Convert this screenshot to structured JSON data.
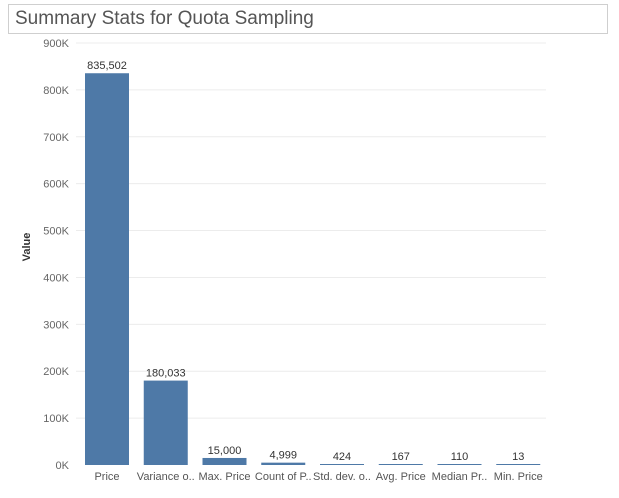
{
  "chart_data": {
    "type": "bar",
    "title": "Summary Stats for Quota Sampling",
    "ylabel": "Value",
    "xlabel": "",
    "categories": [
      "Price",
      "Variance o..",
      "Max. Price",
      "Count of P..",
      "Std. dev. o..",
      "Avg. Price",
      "Median Pr..",
      "Min. Price"
    ],
    "values": [
      835502,
      180033,
      15000,
      4999,
      424,
      167,
      110,
      13
    ],
    "data_labels": [
      "835,502",
      "180,033",
      "15,000",
      "4,999",
      "424",
      "167",
      "110",
      "13"
    ],
    "ylim": [
      0,
      900000
    ],
    "yticks": [
      {
        "value": 0,
        "label": "0K"
      },
      {
        "value": 100000,
        "label": "100K"
      },
      {
        "value": 200000,
        "label": "200K"
      },
      {
        "value": 300000,
        "label": "300K"
      },
      {
        "value": 400000,
        "label": "400K"
      },
      {
        "value": 500000,
        "label": "500K"
      },
      {
        "value": 600000,
        "label": "600K"
      },
      {
        "value": 700000,
        "label": "700K"
      },
      {
        "value": 800000,
        "label": "800K"
      },
      {
        "value": 900000,
        "label": "900K"
      }
    ],
    "grid": true,
    "bar_color": "#4e79a7"
  }
}
